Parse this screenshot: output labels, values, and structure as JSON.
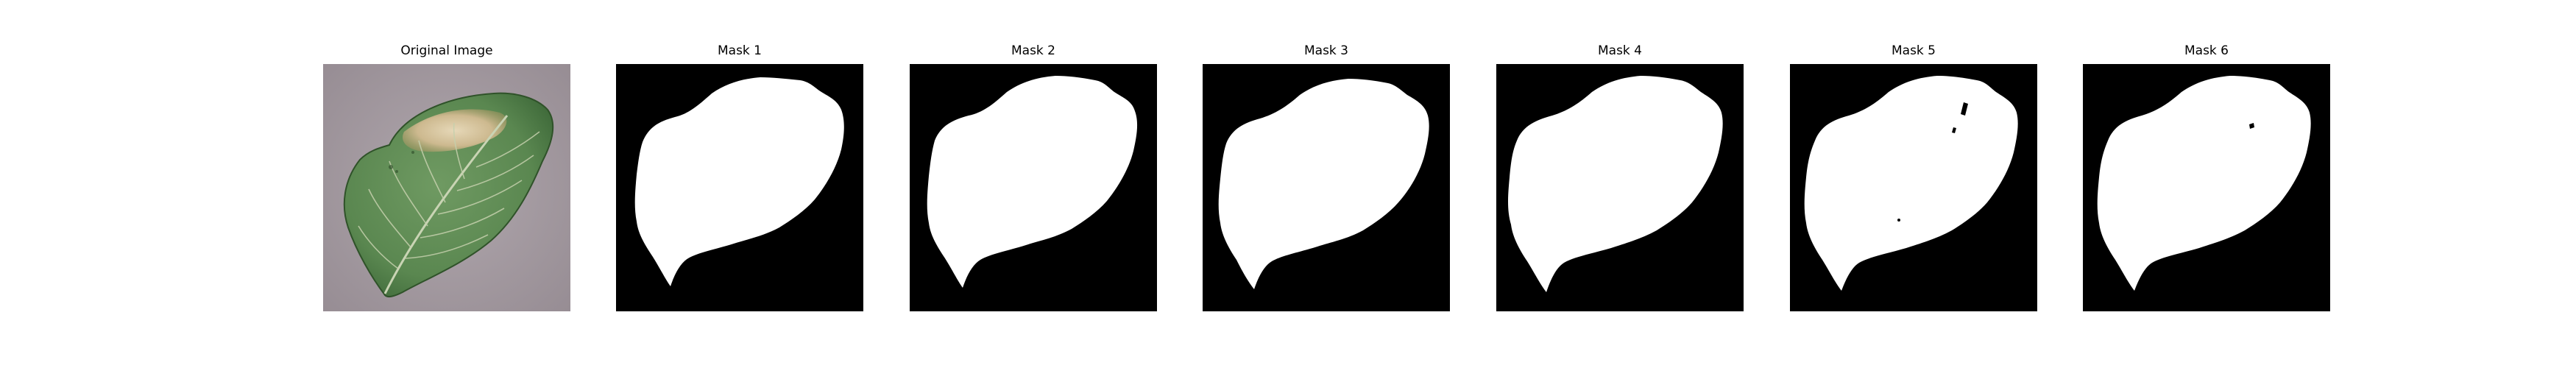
{
  "figure": {
    "panels": [
      {
        "title": "Original Image",
        "kind": "photo",
        "subject": "leaf"
      },
      {
        "title": "Mask 1",
        "kind": "mask",
        "subject": "leaf-mask"
      },
      {
        "title": "Mask 2",
        "kind": "mask",
        "subject": "leaf-mask"
      },
      {
        "title": "Mask 3",
        "kind": "mask",
        "subject": "leaf-mask"
      },
      {
        "title": "Mask 4",
        "kind": "mask",
        "subject": "leaf-mask"
      },
      {
        "title": "Mask 5",
        "kind": "mask",
        "subject": "leaf-mask"
      },
      {
        "title": "Mask 6",
        "kind": "mask",
        "subject": "leaf-mask"
      }
    ],
    "colors": {
      "mask_background": "#000000",
      "mask_foreground": "#ffffff",
      "photo_background": "#a69ca3",
      "leaf_green": "#5f8a55",
      "leaf_dark": "#3e6638",
      "lesion_tan": "#d3c3a3"
    }
  }
}
